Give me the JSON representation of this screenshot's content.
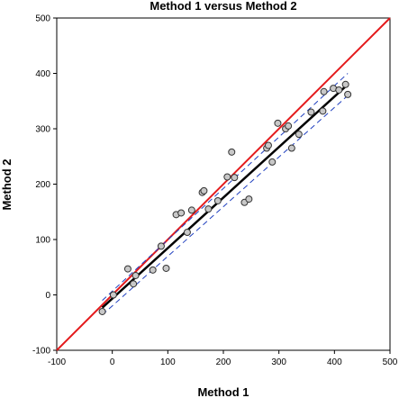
{
  "chart_data": {
    "type": "scatter",
    "title": "Method 1 versus Method 2",
    "xlabel": "Method 1",
    "ylabel": "Method 2",
    "xlim": [
      -100,
      500
    ],
    "ylim": [
      -100,
      500
    ],
    "xticks": [
      -100,
      0,
      100,
      200,
      300,
      400,
      500
    ],
    "yticks": [
      -100,
      0,
      100,
      200,
      300,
      400,
      500
    ],
    "grid": false,
    "legend": "none",
    "points": [
      {
        "x": -18,
        "y": -30
      },
      {
        "x": 2,
        "y": 0
      },
      {
        "x": 28,
        "y": 47
      },
      {
        "x": 38,
        "y": 20
      },
      {
        "x": 42,
        "y": 35
      },
      {
        "x": 73,
        "y": 45
      },
      {
        "x": 88,
        "y": 88
      },
      {
        "x": 97,
        "y": 48
      },
      {
        "x": 115,
        "y": 145
      },
      {
        "x": 124,
        "y": 148
      },
      {
        "x": 135,
        "y": 113
      },
      {
        "x": 143,
        "y": 153
      },
      {
        "x": 162,
        "y": 185
      },
      {
        "x": 165,
        "y": 188
      },
      {
        "x": 173,
        "y": 155
      },
      {
        "x": 190,
        "y": 170
      },
      {
        "x": 207,
        "y": 213
      },
      {
        "x": 215,
        "y": 258
      },
      {
        "x": 220,
        "y": 212
      },
      {
        "x": 238,
        "y": 167
      },
      {
        "x": 246,
        "y": 173
      },
      {
        "x": 278,
        "y": 265
      },
      {
        "x": 281,
        "y": 270
      },
      {
        "x": 288,
        "y": 240
      },
      {
        "x": 298,
        "y": 310
      },
      {
        "x": 312,
        "y": 300
      },
      {
        "x": 317,
        "y": 305
      },
      {
        "x": 323,
        "y": 265
      },
      {
        "x": 336,
        "y": 290
      },
      {
        "x": 358,
        "y": 330
      },
      {
        "x": 379,
        "y": 332
      },
      {
        "x": 381,
        "y": 367
      },
      {
        "x": 398,
        "y": 373
      },
      {
        "x": 408,
        "y": 370
      },
      {
        "x": 420,
        "y": 380
      },
      {
        "x": 424,
        "y": 362
      }
    ],
    "identity_line": {
      "color": "#e41a1c",
      "from": -100,
      "to": 500
    },
    "regression_line": {
      "x0": -18,
      "y0": -23,
      "x1": 424,
      "y1": 380,
      "color": "#000000"
    },
    "confidence_band": {
      "color": "#1f3fbf",
      "upper": [
        {
          "x": -18,
          "y": -10
        },
        {
          "x": 424,
          "y": 400
        }
      ],
      "lower": [
        {
          "x": -18,
          "y": -36
        },
        {
          "x": 424,
          "y": 360
        }
      ]
    },
    "point_fill": "#c8c8c8",
    "point_stroke": "#333333"
  }
}
